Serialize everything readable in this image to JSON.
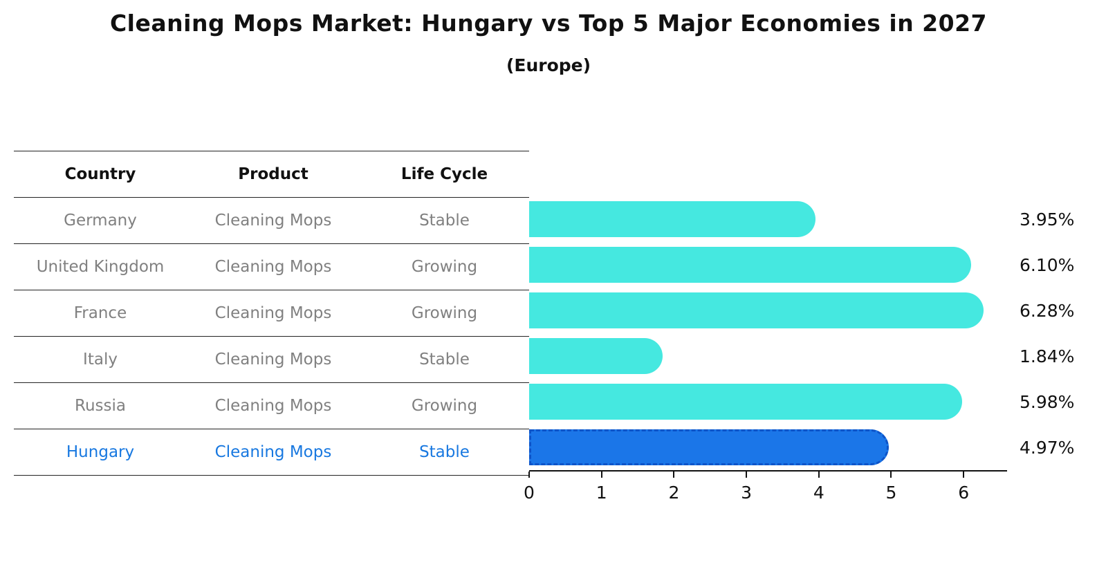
{
  "title": "Cleaning Mops Market: Hungary vs Top 5 Major Economies in 2027",
  "subtitle": "(Europe)",
  "table": {
    "headers": [
      "Country",
      "Product",
      "Life Cycle"
    ],
    "rows": [
      {
        "country": "Germany",
        "product": "Cleaning Mops",
        "life_cycle": "Stable",
        "highlight": false
      },
      {
        "country": "United Kingdom",
        "product": "Cleaning Mops",
        "life_cycle": "Growing",
        "highlight": false
      },
      {
        "country": "France",
        "product": "Cleaning Mops",
        "life_cycle": "Growing",
        "highlight": false
      },
      {
        "country": "Italy",
        "product": "Cleaning Mops",
        "life_cycle": "Stable",
        "highlight": false
      },
      {
        "country": "Russia",
        "product": "Cleaning Mops",
        "life_cycle": "Growing",
        "highlight": false
      },
      {
        "country": "Hungary",
        "product": "Cleaning Mops",
        "life_cycle": "Stable",
        "highlight": true
      }
    ]
  },
  "chart_data": {
    "type": "bar",
    "orientation": "horizontal",
    "title": "Cleaning Mops Market: Hungary vs Top 5 Major Economies in 2027",
    "subtitle": "(Europe)",
    "categories": [
      "Germany",
      "United Kingdom",
      "France",
      "Italy",
      "Russia",
      "Hungary"
    ],
    "values": [
      3.95,
      6.1,
      6.28,
      1.84,
      5.98,
      4.97
    ],
    "value_labels": [
      "3.95%",
      "6.10%",
      "6.28%",
      "1.84%",
      "5.98%",
      "4.97%"
    ],
    "xlabel": "",
    "ylabel": "",
    "xlim": [
      0,
      6.6
    ],
    "xticks": [
      0,
      1,
      2,
      3,
      4,
      5,
      6
    ],
    "grid": false,
    "legend": "none",
    "highlight_index": 5,
    "colors": {
      "bar": "#45E8E0",
      "highlight_bar": "#1B76E8",
      "highlight_border": "#0E54C8",
      "highlight_text": "#1878E0",
      "body_text": "#808080",
      "heading_text": "#111111"
    }
  }
}
